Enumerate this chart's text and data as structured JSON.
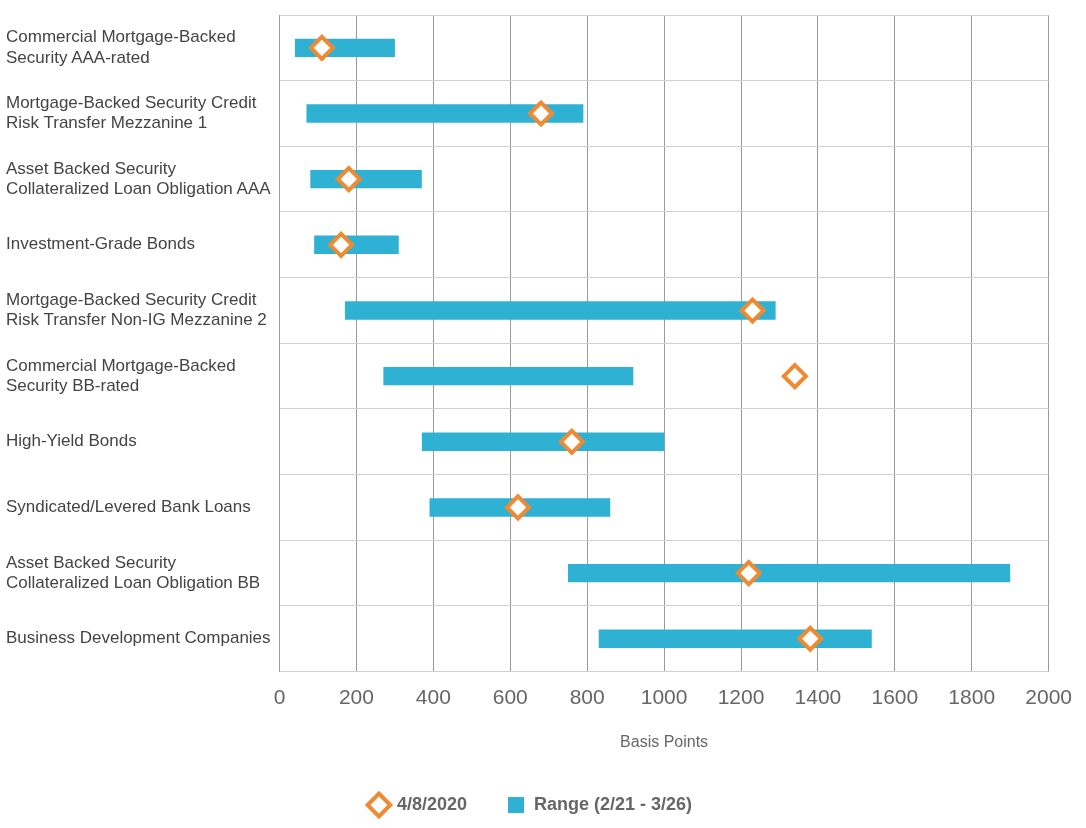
{
  "chart_data": {
    "type": "bar",
    "orientation": "horizontal",
    "xlabel": "Basis Points",
    "categories": [
      "Commercial Mortgage-Backed Security AAA-rated",
      "Mortgage-Backed Security Credit Risk Transfer Mezzanine 1",
      "Asset Backed Security Collateralized Loan Obligation AAA",
      "Investment-Grade Bonds",
      "Mortgage-Backed Security Credit Risk Transfer Non-IG Mezzanine 2",
      "Commercial Mortgage-Backed Security BB-rated",
      "High-Yield Bonds",
      "Syndicated/Levered Bank Loans",
      "Asset Backed Security Collateralized Loan Obligation BB",
      "Business Development Companies"
    ],
    "series": [
      {
        "name": "4/8/2020",
        "type": "scatter",
        "marker": "diamond",
        "color": "#f08a32",
        "x": [
          "Commercial Mortgage-Backed Security AAA-rated",
          "Mortgage-Backed Security Credit Risk Transfer Mezzanine 1",
          "Asset Backed Security Collateralized Loan Obligation AAA",
          "Investment-Grade Bonds",
          "Mortgage-Backed Security Credit Risk Transfer Non-IG Mezzanine 2",
          "Commercial Mortgage-Backed Security BB-rated",
          "High-Yield Bonds",
          "Syndicated/Levered Bank Loans",
          "Asset Backed Security Collateralized Loan Obligation BB",
          "Business Development Companies"
        ],
        "values": [
          110,
          680,
          180,
          160,
          1230,
          1340,
          760,
          620,
          1220,
          1380
        ]
      },
      {
        "name": "Range (2/21 - 3/26)",
        "type": "bar",
        "color": "#2eb1d3",
        "base": [
          40,
          70,
          80,
          90,
          170,
          270,
          370,
          390,
          750,
          830
        ],
        "values": [
          260,
          720,
          290,
          220,
          1120,
          650,
          630,
          470,
          1150,
          710
        ]
      }
    ],
    "xlim": [
      0,
      2000
    ],
    "xticks": [
      0,
      200,
      400,
      600,
      800,
      1000,
      1200,
      1400,
      1600,
      1800,
      2000
    ],
    "grid": true,
    "legend": "bottom"
  }
}
